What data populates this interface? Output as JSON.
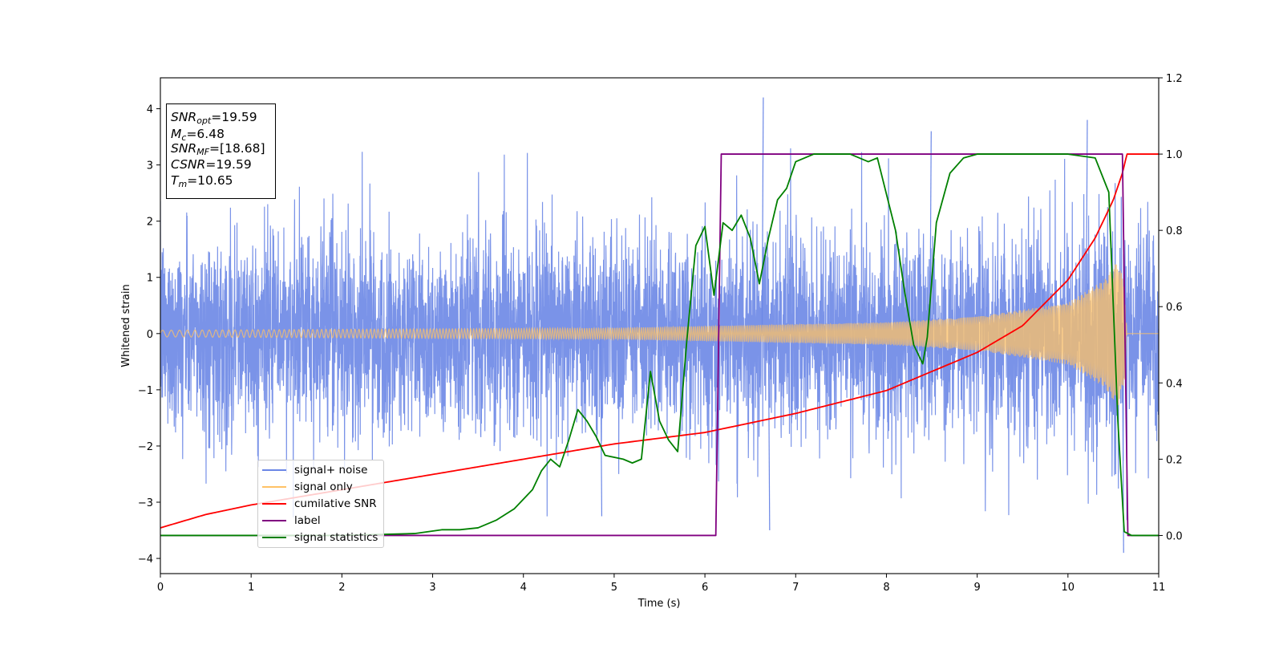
{
  "chart_data": {
    "type": "line",
    "xlabel": "Time (s)",
    "ylabel": "Whitened strain",
    "xlim": [
      0,
      11
    ],
    "ylim_left": [
      -4.27,
      4.55
    ],
    "ylim_right": [
      -0.1,
      1.2
    ],
    "xticks": [
      "0",
      "1",
      "2",
      "3",
      "4",
      "5",
      "6",
      "7",
      "8",
      "9",
      "10",
      "11"
    ],
    "yticks_left": [
      "−4",
      "−3",
      "−2",
      "−1",
      "0",
      "1",
      "2",
      "3",
      "4"
    ],
    "yticks_right": [
      "0.0",
      "0.2",
      "0.4",
      "0.6",
      "0.8",
      "1.0",
      "1.2"
    ],
    "grid": false,
    "legend_position": "lower-left",
    "colors": {
      "signal_noise": "#6b87e6",
      "signal_only": "#ffc266",
      "cumulative_snr": "#ff0000",
      "label": "#800080",
      "signal_statistics": "#008000"
    },
    "series": [
      {
        "name": "signal+ noise",
        "axis": "left",
        "description_values": "dense noise, roughly within ±2.3, extremes ~4.2 at t≈6.63, ~-3.9 at t≈10.6"
      },
      {
        "name": "signal only",
        "axis": "left",
        "amplitude_envelope": [
          [
            0,
            0.06
          ],
          [
            5,
            0.1
          ],
          [
            8,
            0.2
          ],
          [
            9,
            0.3
          ],
          [
            10,
            0.55
          ],
          [
            10.4,
            0.95
          ],
          [
            10.55,
            1.3
          ],
          [
            10.62,
            0.9
          ],
          [
            10.65,
            0.0
          ],
          [
            11,
            0.0
          ]
        ]
      },
      {
        "name": "cumilative SNR",
        "axis": "right",
        "x": [
          0,
          0.5,
          1,
          2,
          3,
          4,
          5,
          6,
          7,
          8,
          9,
          9.5,
          10,
          10.3,
          10.5,
          10.6,
          10.65,
          11
        ],
        "y": [
          0.02,
          0.055,
          0.08,
          0.12,
          0.16,
          0.2,
          0.24,
          0.27,
          0.32,
          0.38,
          0.48,
          0.55,
          0.67,
          0.78,
          0.88,
          0.95,
          1.0,
          1.0
        ]
      },
      {
        "name": "label",
        "axis": "right",
        "x": [
          0,
          6.12,
          6.18,
          10.6,
          10.66,
          11
        ],
        "y": [
          0,
          0,
          1,
          1,
          0,
          0
        ]
      },
      {
        "name": "signal statistics",
        "axis": "right",
        "x": [
          0,
          2,
          2.8,
          3.1,
          3.3,
          3.5,
          3.7,
          3.9,
          4.1,
          4.2,
          4.3,
          4.4,
          4.5,
          4.6,
          4.7,
          4.8,
          4.9,
          5.1,
          5.2,
          5.3,
          5.4,
          5.5,
          5.6,
          5.7,
          5.8,
          5.9,
          6.0,
          6.1,
          6.2,
          6.3,
          6.4,
          6.5,
          6.6,
          6.7,
          6.8,
          6.9,
          7.0,
          7.1,
          7.2,
          7.4,
          7.6,
          7.8,
          7.9,
          8.1,
          8.2,
          8.3,
          8.4,
          8.45,
          8.55,
          8.7,
          8.85,
          9.0,
          9.5,
          10.0,
          10.3,
          10.45,
          10.55,
          10.62,
          10.7,
          11
        ],
        "y": [
          0,
          0,
          0.005,
          0.015,
          0.015,
          0.02,
          0.04,
          0.07,
          0.12,
          0.17,
          0.2,
          0.18,
          0.25,
          0.33,
          0.3,
          0.26,
          0.21,
          0.2,
          0.19,
          0.2,
          0.43,
          0.3,
          0.25,
          0.22,
          0.51,
          0.76,
          0.81,
          0.63,
          0.82,
          0.8,
          0.84,
          0.78,
          0.66,
          0.78,
          0.88,
          0.91,
          0.98,
          0.99,
          1.0,
          1.0,
          1.0,
          0.98,
          0.99,
          0.8,
          0.64,
          0.5,
          0.45,
          0.52,
          0.82,
          0.95,
          0.99,
          1.0,
          1.0,
          1.0,
          0.99,
          0.9,
          0.3,
          0.01,
          0.0,
          0.0
        ]
      }
    ]
  },
  "infobox": {
    "snr_opt_sym": "SNR",
    "snr_opt_sub": "opt",
    "snr_opt_val": "=19.59",
    "mc_sym": "M",
    "mc_sub": "c",
    "mc_val": "=6.48",
    "snr_mf_sym": "SNR",
    "snr_mf_sub": "MF",
    "snr_mf_val": "=[18.68]",
    "csnr_sym": "CSNR",
    "csnr_val": "=19.59",
    "tm_sym": "T",
    "tm_sub": "m",
    "tm_val": "=10.65"
  },
  "legend": {
    "items": [
      {
        "label": "signal+ noise",
        "color": "#6b87e6"
      },
      {
        "label": "signal only",
        "color": "#ffc266"
      },
      {
        "label": "cumilative SNR",
        "color": "#ff0000"
      },
      {
        "label": "label",
        "color": "#800080"
      },
      {
        "label": "signal statistics",
        "color": "#008000"
      }
    ]
  }
}
